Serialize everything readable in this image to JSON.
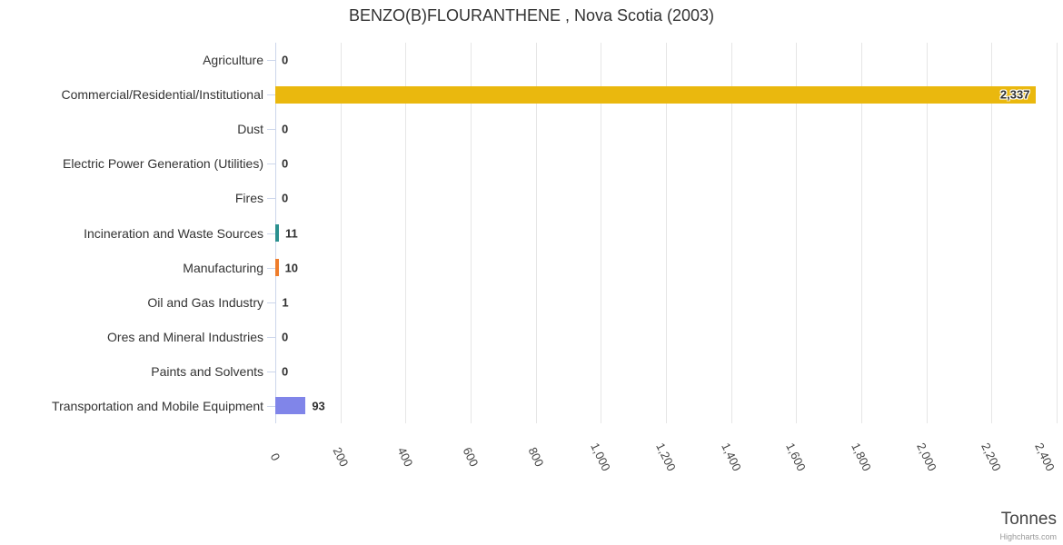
{
  "chart_data": {
    "type": "bar",
    "orientation": "horizontal",
    "title": "BENZO(B)FLOURANTHENE , Nova Scotia (2003)",
    "categories": [
      "Agriculture",
      "Commercial/Residential/Institutional",
      "Dust",
      "Electric Power Generation (Utilities)",
      "Fires",
      "Incineration and Waste Sources",
      "Manufacturing",
      "Oil and Gas Industry",
      "Ores and Mineral Industries",
      "Paints and Solvents",
      "Transportation and Mobile Equipment"
    ],
    "values": [
      0,
      2337,
      0,
      0,
      0,
      11,
      10,
      1,
      0,
      0,
      93
    ],
    "value_labels": [
      "0",
      "2,337",
      "0",
      "0",
      "0",
      "11",
      "10",
      "1",
      "0",
      "0",
      "93"
    ],
    "bar_colors": [
      null,
      "#eab80e",
      null,
      null,
      null,
      "#2b908f",
      "#ee7d2c",
      null,
      null,
      null,
      "#8085e9"
    ],
    "xlabel": "Tonnes",
    "axis": {
      "min": 0,
      "max": 2400,
      "tick_interval": 200,
      "tick_labels": [
        "0",
        "200",
        "400",
        "600",
        "800",
        "1,000",
        "1,200",
        "1,400",
        "1,600",
        "1,800",
        "2,000",
        "2,200",
        "2,400"
      ]
    },
    "grid": true,
    "legend": false,
    "credits": "Highcharts.com"
  },
  "colors": {
    "background": "#ffffff",
    "grid_line": "#e6e6e6",
    "axis_line": "#ccd6eb",
    "title_text": "#333333",
    "category_text": "#333333",
    "tick_text": "#444444",
    "data_label_text": "#2f2f2f",
    "axis_title_text": "#444444",
    "credits_text": "#999999"
  }
}
